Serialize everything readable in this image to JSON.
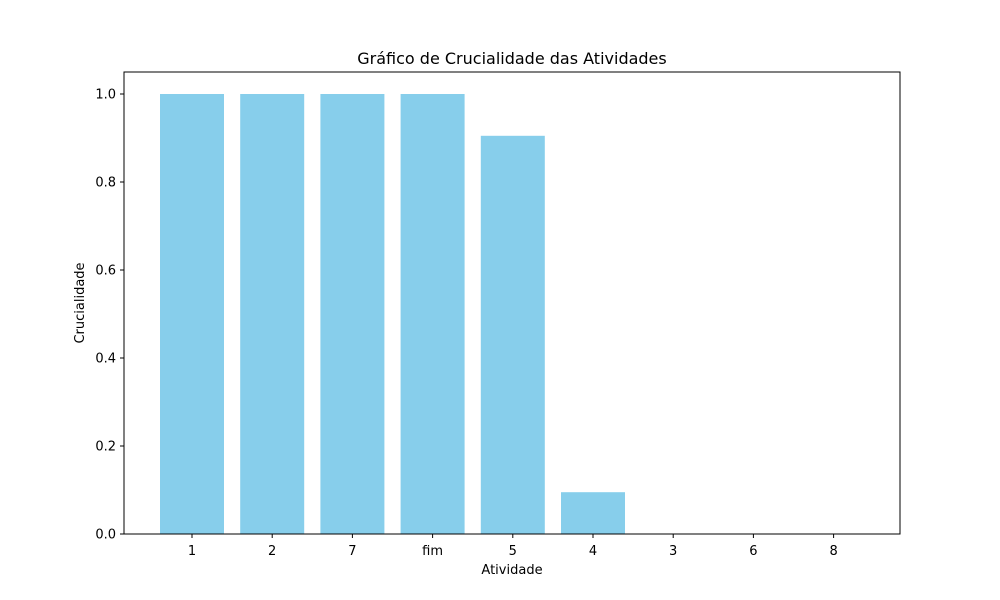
{
  "chart_data": {
    "type": "bar",
    "title": "Gráfico de Crucialidade das Atividades",
    "xlabel": "Atividade",
    "ylabel": "Crucialidade",
    "categories": [
      "1",
      "2",
      "7",
      "fim",
      "5",
      "4",
      "3",
      "6",
      "8"
    ],
    "values": [
      1.0,
      1.0,
      1.0,
      1.0,
      0.905,
      0.095,
      0.0,
      0.0,
      0.0
    ],
    "ylim": [
      0,
      1.05
    ],
    "yticks": [
      "0.0",
      "0.2",
      "0.4",
      "0.6",
      "0.8",
      "1.0"
    ],
    "grid": false,
    "bar_color": "#87ceeb"
  }
}
